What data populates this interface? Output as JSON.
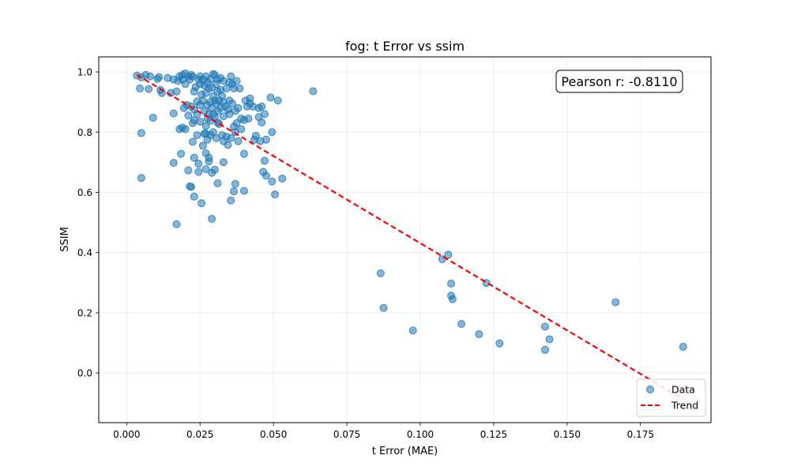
{
  "chart_data": {
    "type": "scatter",
    "title": "fog: t Error vs ssim",
    "xlabel": "t Error (MAE)",
    "ylabel": "SSIM",
    "xlim": [
      -0.0095,
      0.199
    ],
    "ylim": [
      -0.165,
      1.05
    ],
    "xticks": [
      0.0,
      0.025,
      0.05,
      0.075,
      0.1,
      0.125,
      0.15,
      0.175
    ],
    "xtick_labels": [
      "0.000",
      "0.025",
      "0.050",
      "0.075",
      "0.100",
      "0.125",
      "0.150",
      "0.175"
    ],
    "yticks": [
      0.0,
      0.2,
      0.4,
      0.6,
      0.8,
      1.0
    ],
    "ytick_labels": [
      "0.0",
      "0.2",
      "0.4",
      "0.6",
      "0.8",
      "1.0"
    ],
    "grid": true,
    "legend_position": "lower-right",
    "annotation": "Pearson r: -0.8110",
    "series": [
      {
        "name": "Data",
        "kind": "scatter",
        "color": "#1f77b4",
        "points": [
          [
            0.0035,
            0.988
          ],
          [
            0.0045,
            0.945
          ],
          [
            0.005,
            0.982
          ],
          [
            0.005,
            0.797
          ],
          [
            0.005,
            0.648
          ],
          [
            0.0065,
            0.99
          ],
          [
            0.0075,
            0.943
          ],
          [
            0.008,
            0.985
          ],
          [
            0.009,
            0.848
          ],
          [
            0.0105,
            0.977
          ],
          [
            0.011,
            0.983
          ],
          [
            0.0115,
            0.94
          ],
          [
            0.012,
            0.93
          ],
          [
            0.014,
            0.98
          ],
          [
            0.015,
            0.93
          ],
          [
            0.016,
            0.975
          ],
          [
            0.016,
            0.862
          ],
          [
            0.016,
            0.698
          ],
          [
            0.017,
            0.935
          ],
          [
            0.017,
            0.494
          ],
          [
            0.0175,
            0.97
          ],
          [
            0.018,
            0.985
          ],
          [
            0.018,
            0.81
          ],
          [
            0.0185,
            0.728
          ],
          [
            0.019,
            0.99
          ],
          [
            0.019,
            0.975
          ],
          [
            0.019,
            0.815
          ],
          [
            0.0195,
            0.88
          ],
          [
            0.02,
            0.995
          ],
          [
            0.02,
            0.96
          ],
          [
            0.02,
            0.81
          ],
          [
            0.0205,
            0.89
          ],
          [
            0.021,
            0.985
          ],
          [
            0.021,
            0.855
          ],
          [
            0.021,
            0.673
          ],
          [
            0.0215,
            0.975
          ],
          [
            0.0215,
            0.62
          ],
          [
            0.022,
            0.99
          ],
          [
            0.022,
            0.885
          ],
          [
            0.022,
            0.618
          ],
          [
            0.0225,
            0.985
          ],
          [
            0.0225,
            0.83
          ],
          [
            0.0225,
            0.768
          ],
          [
            0.023,
            0.935
          ],
          [
            0.023,
            0.875
          ],
          [
            0.023,
            0.84
          ],
          [
            0.023,
            0.715
          ],
          [
            0.023,
            0.586
          ],
          [
            0.0235,
            0.95
          ],
          [
            0.024,
            0.902
          ],
          [
            0.024,
            0.86
          ],
          [
            0.024,
            0.79
          ],
          [
            0.0245,
            0.975
          ],
          [
            0.0245,
            0.695
          ],
          [
            0.0245,
            0.668
          ],
          [
            0.025,
            0.985
          ],
          [
            0.025,
            0.96
          ],
          [
            0.025,
            0.89
          ],
          [
            0.025,
            0.835
          ],
          [
            0.0255,
            0.925
          ],
          [
            0.0255,
            0.564
          ],
          [
            0.026,
            0.975
          ],
          [
            0.026,
            0.905
          ],
          [
            0.026,
            0.755
          ],
          [
            0.0265,
            0.955
          ],
          [
            0.0265,
            0.87
          ],
          [
            0.0265,
            0.795
          ],
          [
            0.027,
            0.985
          ],
          [
            0.027,
            0.93
          ],
          [
            0.027,
            0.82
          ],
          [
            0.027,
            0.795
          ],
          [
            0.027,
            0.73
          ],
          [
            0.027,
            0.677
          ],
          [
            0.0275,
            0.965
          ],
          [
            0.0275,
            0.89
          ],
          [
            0.0275,
            0.845
          ],
          [
            0.0275,
            0.775
          ],
          [
            0.028,
            0.945
          ],
          [
            0.028,
            0.86
          ],
          [
            0.028,
            0.715
          ],
          [
            0.028,
            0.703
          ],
          [
            0.0285,
            0.975
          ],
          [
            0.0285,
            0.9
          ],
          [
            0.0285,
            0.838
          ],
          [
            0.0285,
            0.79
          ],
          [
            0.029,
            0.948
          ],
          [
            0.029,
            0.88
          ],
          [
            0.029,
            0.665
          ],
          [
            0.029,
            0.512
          ],
          [
            0.0295,
            0.993
          ],
          [
            0.0295,
            0.92
          ],
          [
            0.0295,
            0.86
          ],
          [
            0.0295,
            0.8
          ],
          [
            0.03,
            0.99
          ],
          [
            0.03,
            0.905
          ],
          [
            0.03,
            0.85
          ],
          [
            0.03,
            0.675
          ],
          [
            0.0305,
            0.96
          ],
          [
            0.0305,
            0.895
          ],
          [
            0.0305,
            0.78
          ],
          [
            0.031,
            0.975
          ],
          [
            0.031,
            0.935
          ],
          [
            0.031,
            0.87
          ],
          [
            0.031,
            0.832
          ],
          [
            0.031,
            0.63
          ],
          [
            0.0315,
            0.905
          ],
          [
            0.0315,
            0.827
          ],
          [
            0.032,
            0.98
          ],
          [
            0.032,
            0.94
          ],
          [
            0.032,
            0.88
          ],
          [
            0.0325,
            0.92
          ],
          [
            0.0325,
            0.79
          ],
          [
            0.033,
            0.97
          ],
          [
            0.033,
            0.9
          ],
          [
            0.033,
            0.853
          ],
          [
            0.033,
            0.77
          ],
          [
            0.033,
            0.7
          ],
          [
            0.0335,
            0.885
          ],
          [
            0.034,
            0.945
          ],
          [
            0.034,
            0.785
          ],
          [
            0.0345,
            0.875
          ],
          [
            0.0345,
            0.757
          ],
          [
            0.035,
            0.965
          ],
          [
            0.035,
            0.905
          ],
          [
            0.035,
            0.86
          ],
          [
            0.0355,
            0.985
          ],
          [
            0.0355,
            0.78
          ],
          [
            0.0355,
            0.573
          ],
          [
            0.036,
            0.96
          ],
          [
            0.036,
            0.895
          ],
          [
            0.0365,
            0.945
          ],
          [
            0.0365,
            0.818
          ],
          [
            0.0365,
            0.603
          ],
          [
            0.037,
            0.87
          ],
          [
            0.037,
            0.8
          ],
          [
            0.037,
            0.628
          ],
          [
            0.0375,
            0.97
          ],
          [
            0.0375,
            0.83
          ],
          [
            0.038,
            0.88
          ],
          [
            0.038,
            0.77
          ],
          [
            0.0385,
            0.945
          ],
          [
            0.039,
            0.845
          ],
          [
            0.039,
            0.81
          ],
          [
            0.04,
            0.84
          ],
          [
            0.04,
            0.728
          ],
          [
            0.04,
            0.605
          ],
          [
            0.0405,
            0.905
          ],
          [
            0.041,
            0.885
          ],
          [
            0.0415,
            0.845
          ],
          [
            0.042,
            0.912
          ],
          [
            0.042,
            0.895
          ],
          [
            0.043,
            0.885
          ],
          [
            0.0435,
            0.775
          ],
          [
            0.044,
            0.788
          ],
          [
            0.045,
            0.88
          ],
          [
            0.045,
            0.85
          ],
          [
            0.0455,
            0.77
          ],
          [
            0.046,
            0.885
          ],
          [
            0.046,
            0.832
          ],
          [
            0.0465,
            0.668
          ],
          [
            0.047,
            0.86
          ],
          [
            0.047,
            0.705
          ],
          [
            0.0475,
            0.775
          ],
          [
            0.0475,
            0.655
          ],
          [
            0.049,
            0.915
          ],
          [
            0.0495,
            0.8
          ],
          [
            0.0495,
            0.636
          ],
          [
            0.0505,
            0.593
          ],
          [
            0.0515,
            0.905
          ],
          [
            0.053,
            0.646
          ],
          [
            0.0635,
            0.936
          ],
          [
            0.0865,
            0.331
          ],
          [
            0.0875,
            0.216
          ],
          [
            0.0975,
            0.141
          ],
          [
            0.1075,
            0.378
          ],
          [
            0.1095,
            0.393
          ],
          [
            0.1105,
            0.297
          ],
          [
            0.1105,
            0.257
          ],
          [
            0.111,
            0.245
          ],
          [
            0.114,
            0.163
          ],
          [
            0.12,
            0.129
          ],
          [
            0.1225,
            0.299
          ],
          [
            0.127,
            0.098
          ],
          [
            0.1425,
            0.154
          ],
          [
            0.1425,
            0.077
          ],
          [
            0.144,
            0.112
          ],
          [
            0.1665,
            0.235
          ],
          [
            0.1895,
            0.087
          ]
        ]
      },
      {
        "name": "Trend",
        "kind": "line",
        "style": "dashed",
        "color": "#ff0000",
        "x": [
          0.0035,
          0.1895
        ],
        "y": [
          0.99,
          -0.087
        ]
      }
    ]
  }
}
